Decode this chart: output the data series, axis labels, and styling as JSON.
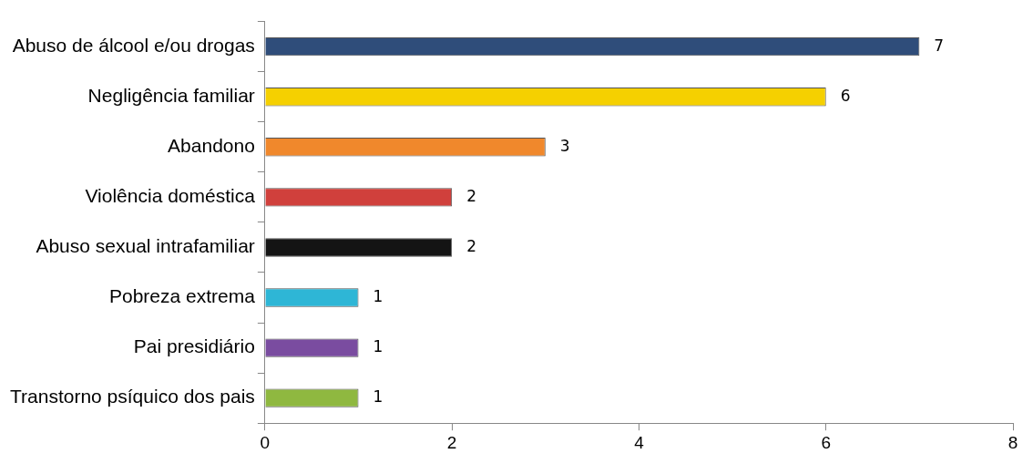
{
  "chart_data": {
    "type": "bar",
    "orientation": "horizontal",
    "categories": [
      "Abuso de álcool e/ou drogas",
      "Negligência familiar",
      "Abandono",
      "Violência doméstica",
      "Abuso sexual intrafamiliar",
      "Pobreza extrema",
      "Pai presidiário",
      "Transtorno psíquico dos pais"
    ],
    "values": [
      7,
      6,
      3,
      2,
      2,
      1,
      1,
      1
    ],
    "colors": [
      "#2f4d7a",
      "#f5d000",
      "#f0882c",
      "#d0403c",
      "#141414",
      "#2eb6d6",
      "#7a4ca0",
      "#8fb840"
    ],
    "xlim": [
      0,
      8
    ],
    "xticks": [
      0,
      2,
      4,
      6,
      8
    ],
    "grid": false,
    "legend": false,
    "data_labels": true
  }
}
